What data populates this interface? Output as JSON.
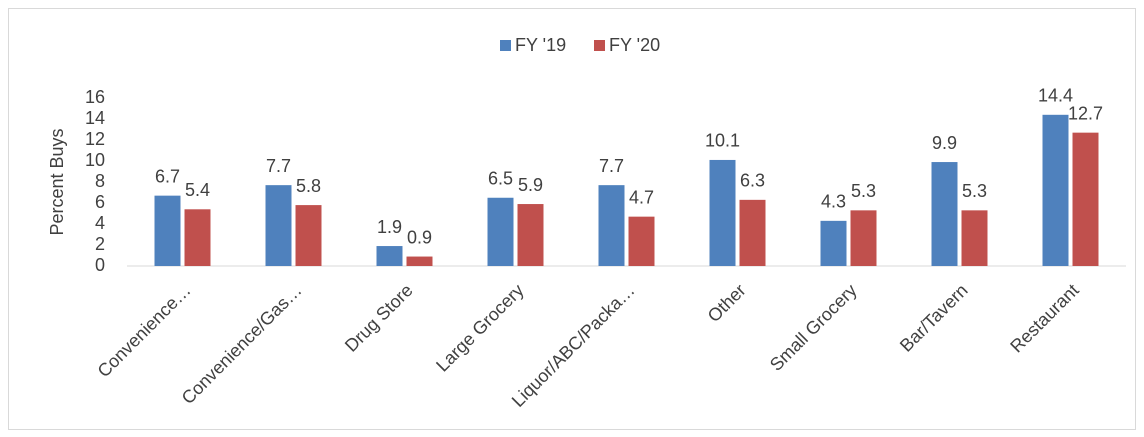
{
  "chart_data": {
    "type": "bar",
    "categories": [
      "Convenience…",
      "Convenience/Gas…",
      "Drug Store",
      "Large Grocery",
      "Liquor/ABC/Packa…",
      "Other",
      "Small Grocery",
      "Bar/Tavern",
      "Restaurant"
    ],
    "series": [
      {
        "name": "FY '19",
        "color": "#4f81bd",
        "values": [
          6.7,
          7.7,
          1.9,
          6.5,
          7.7,
          10.1,
          4.3,
          9.9,
          14.4
        ]
      },
      {
        "name": "FY '20",
        "color": "#c0504d",
        "values": [
          5.4,
          5.8,
          0.9,
          5.9,
          4.7,
          6.3,
          5.3,
          5.3,
          12.7
        ]
      }
    ],
    "y_label": "Percent Buys",
    "ylim": [
      0,
      16
    ],
    "yticks": [
      0,
      2,
      4,
      6,
      8,
      10,
      12,
      14,
      16
    ],
    "grid": false,
    "legend": "top"
  }
}
